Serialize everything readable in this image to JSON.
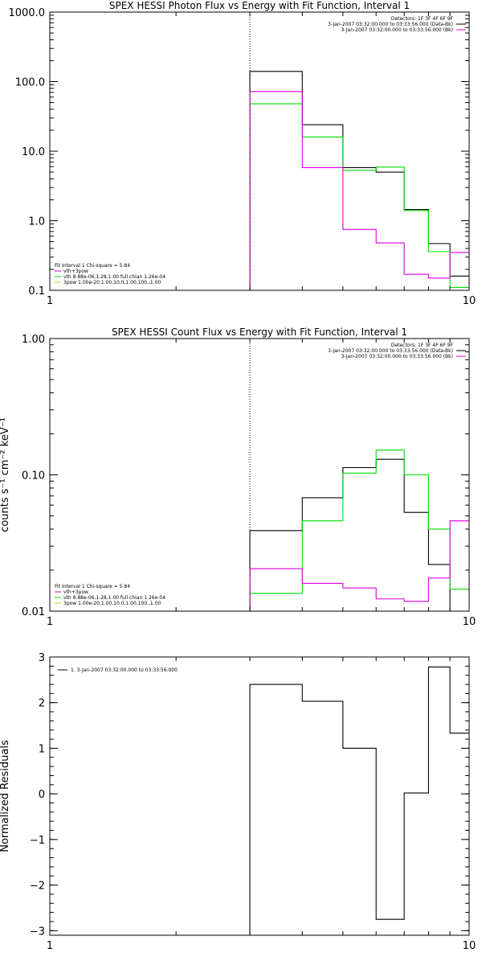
{
  "chart_data": [
    {
      "type": "line",
      "title": "SPEX HESSI Photon Flux vs Energy with Fit Function, Interval 1",
      "xlabel": "",
      "ylabel": "",
      "x_scale": "log",
      "y_scale": "log",
      "xlim": [
        1,
        10
      ],
      "ylim": [
        0.1,
        1000.0
      ],
      "x_ticks": [
        {
          "value": 1,
          "label": "1"
        },
        {
          "value": 10,
          "label": "10"
        }
      ],
      "y_ticks": [
        {
          "value": 0.1,
          "label": "0.1"
        },
        {
          "value": 1,
          "label": "1.0"
        },
        {
          "value": 10,
          "label": "10.0"
        },
        {
          "value": 100,
          "label": "100.0"
        },
        {
          "value": 1000,
          "label": "1000.0"
        }
      ],
      "vline_x": 3.0,
      "bin_edges": [
        3.0,
        4.0,
        5.0,
        6.0,
        7.0,
        8.0,
        9.0,
        10.0
      ],
      "series": [
        {
          "color": "#000000",
          "values": [
            140,
            24,
            5.8,
            5.0,
            1.45,
            0.47,
            0.16
          ]
        },
        {
          "color": "#00dd00",
          "values": [
            48,
            16,
            5.3,
            5.9,
            1.4,
            0.36,
            0.11
          ]
        },
        {
          "color": "#dd00dd",
          "values": [
            72,
            5.8,
            0.75,
            0.48,
            0.17,
            0.15,
            0.35
          ]
        }
      ],
      "legend_top": [
        {
          "text": "Detectors: 1F 3F 4F 6F 9F",
          "color": null
        },
        {
          "text": "3-Jan-2007 03:32:00.000 to 03:33:56.000 (Data-Bk)",
          "color": "#000000"
        },
        {
          "text": "3-Jan-2007 03:32:00.000 to 03:33:56.000 (Bk)",
          "color": "#dd00dd"
        }
      ],
      "legend_bottom": [
        {
          "text": "Fit Interval 1    Chi-square = 5.84",
          "color": null
        },
        {
          "text": "vth+3pow",
          "color": "#dd00dd"
        },
        {
          "text": "vth 8.88e-06,1.28,1.00  full chian 1.26e-04",
          "color": "#00dd00"
        },
        {
          "text": "3pow 1.00e-20,1.00,10.0,1.00,100.,1.00",
          "color": "#e8c000"
        }
      ]
    },
    {
      "type": "line",
      "title": "SPEX HESSI Count Flux vs Energy with Fit Function, Interval 1",
      "xlabel": "",
      "ylabel": "counts s⁻¹ cm⁻² keV⁻¹",
      "x_scale": "log",
      "y_scale": "log",
      "xlim": [
        1,
        10
      ],
      "ylim": [
        0.01,
        1.0
      ],
      "x_ticks": [
        {
          "value": 1,
          "label": "1"
        },
        {
          "value": 10,
          "label": "10"
        }
      ],
      "y_ticks": [
        {
          "value": 0.01,
          "label": "0.01"
        },
        {
          "value": 0.1,
          "label": "0.10"
        },
        {
          "value": 1.0,
          "label": "1.00"
        }
      ],
      "vline_x": 3.0,
      "bin_edges": [
        3.0,
        4.0,
        5.0,
        6.0,
        7.0,
        8.0,
        9.0,
        10.0
      ],
      "series": [
        {
          "color": "#000000",
          "values": [
            0.039,
            0.068,
            0.113,
            0.13,
            0.053,
            0.022,
            0.01
          ]
        },
        {
          "color": "#00dd00",
          "values": [
            0.0135,
            0.046,
            0.103,
            0.152,
            0.1,
            0.04,
            0.0145
          ]
        },
        {
          "color": "#dd00dd",
          "values": [
            0.0205,
            0.016,
            0.0148,
            0.0123,
            0.0118,
            0.0175,
            0.046
          ]
        }
      ],
      "legend_top": [
        {
          "text": "Detectors: 1F 3F 4F 6F 9F",
          "color": null
        },
        {
          "text": "3-Jan-2007 03:32:00.000 to 03:33:56.000 (Data-Bk)",
          "color": "#000000"
        },
        {
          "text": "3-Jan-2007 03:32:00.000 to 03:33:56.000 (Bk)",
          "color": "#dd00dd"
        }
      ],
      "legend_bottom": [
        {
          "text": "Fit Interval 1    Chi-square = 5.84",
          "color": null
        },
        {
          "text": "vth+3pow",
          "color": "#dd00dd"
        },
        {
          "text": "vth 8.88e-06,1.28,1.00  full chian 1.26e-04",
          "color": "#00dd00"
        },
        {
          "text": "3pow 1.00e-20,1.00,10.0,1.00,100.,1.00",
          "color": "#e8c000"
        }
      ]
    },
    {
      "type": "line",
      "title": "",
      "xlabel": "",
      "ylabel": "Normalized Residuals",
      "x_scale": "log",
      "y_scale": "linear",
      "xlim": [
        1,
        10
      ],
      "ylim": [
        -3.1,
        3.0
      ],
      "x_ticks": [
        {
          "value": 1,
          "label": "1"
        },
        {
          "value": 10,
          "label": "10"
        }
      ],
      "y_ticks": [
        {
          "value": -3,
          "label": "−3"
        },
        {
          "value": -2,
          "label": "−2"
        },
        {
          "value": -1,
          "label": "−1"
        },
        {
          "value": 0,
          "label": "0"
        },
        {
          "value": 1,
          "label": "1"
        },
        {
          "value": 2,
          "label": "2"
        },
        {
          "value": 3,
          "label": "3"
        }
      ],
      "vline_x": null,
      "bin_edges": [
        3.0,
        4.0,
        5.0,
        6.0,
        7.0,
        8.0,
        9.0,
        10.0
      ],
      "series": [
        {
          "color": "#000000",
          "values": [
            2.4,
            2.03,
            1.0,
            -2.75,
            0.02,
            2.78,
            1.33
          ]
        }
      ],
      "legend_top": [
        {
          "text": "1. 3-Jan-2007 03:32:00.000 to 03:33:56.000",
          "color": "#000000"
        }
      ],
      "legend_bottom": []
    }
  ]
}
